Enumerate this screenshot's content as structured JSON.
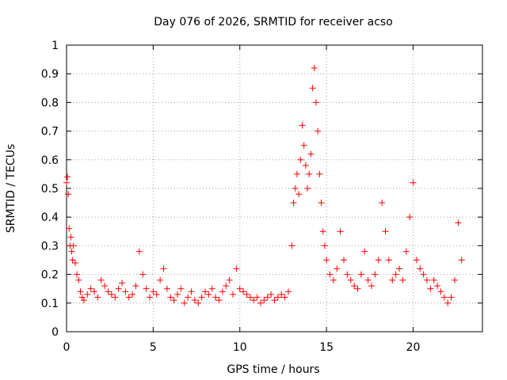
{
  "chart_data": {
    "type": "scatter",
    "title": "Day 076 of 2026, SRMTID for receiver acso",
    "xlabel": "GPS time / hours",
    "ylabel": "SRMTID / TECUs",
    "xlim": [
      0,
      24
    ],
    "ylim": [
      0,
      1
    ],
    "xticks": [
      0,
      5,
      10,
      15,
      20
    ],
    "xtick_labels": [
      "0",
      "5",
      "10",
      "15",
      "20"
    ],
    "yticks": [
      0,
      0.1,
      0.2,
      0.3,
      0.4,
      0.5,
      0.6,
      0.7,
      0.8,
      0.9,
      1
    ],
    "ytick_labels": [
      "0",
      "0.1",
      "0.2",
      "0.3",
      "0.4",
      "0.5",
      "0.6",
      "0.7",
      "0.8",
      "0.9",
      "1"
    ],
    "grid": true,
    "marker": "+",
    "series": [
      {
        "name": "SRMTID",
        "color": "#ff0000",
        "x": [
          0.0,
          0.05,
          0.1,
          0.15,
          0.2,
          0.25,
          0.3,
          0.35,
          0.4,
          0.5,
          0.6,
          0.7,
          0.8,
          0.9,
          1.0,
          1.2,
          1.4,
          1.6,
          1.8,
          2.0,
          2.2,
          2.4,
          2.6,
          2.8,
          3.0,
          3.2,
          3.4,
          3.6,
          3.8,
          4.0,
          4.2,
          4.4,
          4.6,
          4.8,
          5.0,
          5.2,
          5.4,
          5.6,
          5.8,
          6.0,
          6.2,
          6.4,
          6.6,
          6.8,
          7.0,
          7.2,
          7.4,
          7.6,
          7.8,
          8.0,
          8.2,
          8.4,
          8.6,
          8.8,
          9.0,
          9.2,
          9.4,
          9.6,
          9.8,
          10.0,
          10.2,
          10.4,
          10.6,
          10.8,
          11.0,
          11.2,
          11.4,
          11.6,
          11.8,
          12.0,
          12.2,
          12.4,
          12.6,
          12.8,
          13.0,
          13.1,
          13.2,
          13.3,
          13.4,
          13.5,
          13.6,
          13.7,
          13.8,
          13.9,
          14.0,
          14.1,
          14.2,
          14.3,
          14.4,
          14.5,
          14.6,
          14.7,
          14.8,
          14.9,
          15.0,
          15.2,
          15.4,
          15.6,
          15.8,
          16.0,
          16.2,
          16.4,
          16.6,
          16.8,
          17.0,
          17.2,
          17.4,
          17.6,
          17.8,
          18.0,
          18.2,
          18.4,
          18.6,
          18.8,
          19.0,
          19.2,
          19.4,
          19.6,
          19.8,
          20.0,
          20.2,
          20.4,
          20.6,
          20.8,
          21.0,
          21.2,
          21.4,
          21.6,
          21.8,
          22.0,
          22.2,
          22.4,
          22.6,
          22.8
        ],
        "y": [
          0.52,
          0.54,
          0.48,
          0.36,
          0.3,
          0.33,
          0.28,
          0.25,
          0.3,
          0.24,
          0.2,
          0.18,
          0.14,
          0.12,
          0.11,
          0.13,
          0.15,
          0.14,
          0.12,
          0.18,
          0.16,
          0.14,
          0.13,
          0.12,
          0.15,
          0.17,
          0.14,
          0.12,
          0.13,
          0.16,
          0.28,
          0.2,
          0.15,
          0.12,
          0.14,
          0.13,
          0.18,
          0.22,
          0.15,
          0.12,
          0.11,
          0.13,
          0.15,
          0.1,
          0.12,
          0.14,
          0.11,
          0.1,
          0.12,
          0.14,
          0.13,
          0.15,
          0.12,
          0.11,
          0.14,
          0.16,
          0.18,
          0.13,
          0.22,
          0.15,
          0.14,
          0.13,
          0.12,
          0.11,
          0.12,
          0.1,
          0.11,
          0.12,
          0.13,
          0.11,
          0.12,
          0.13,
          0.12,
          0.14,
          0.3,
          0.45,
          0.5,
          0.55,
          0.48,
          0.6,
          0.72,
          0.65,
          0.58,
          0.5,
          0.55,
          0.62,
          0.85,
          0.92,
          0.8,
          0.7,
          0.55,
          0.45,
          0.35,
          0.3,
          0.25,
          0.2,
          0.18,
          0.22,
          0.35,
          0.25,
          0.2,
          0.18,
          0.16,
          0.15,
          0.2,
          0.28,
          0.18,
          0.16,
          0.2,
          0.25,
          0.45,
          0.35,
          0.25,
          0.18,
          0.2,
          0.22,
          0.18,
          0.28,
          0.4,
          0.52,
          0.25,
          0.22,
          0.2,
          0.18,
          0.15,
          0.18,
          0.16,
          0.14,
          0.12,
          0.1,
          0.12,
          0.18,
          0.38,
          0.25
        ]
      }
    ]
  }
}
